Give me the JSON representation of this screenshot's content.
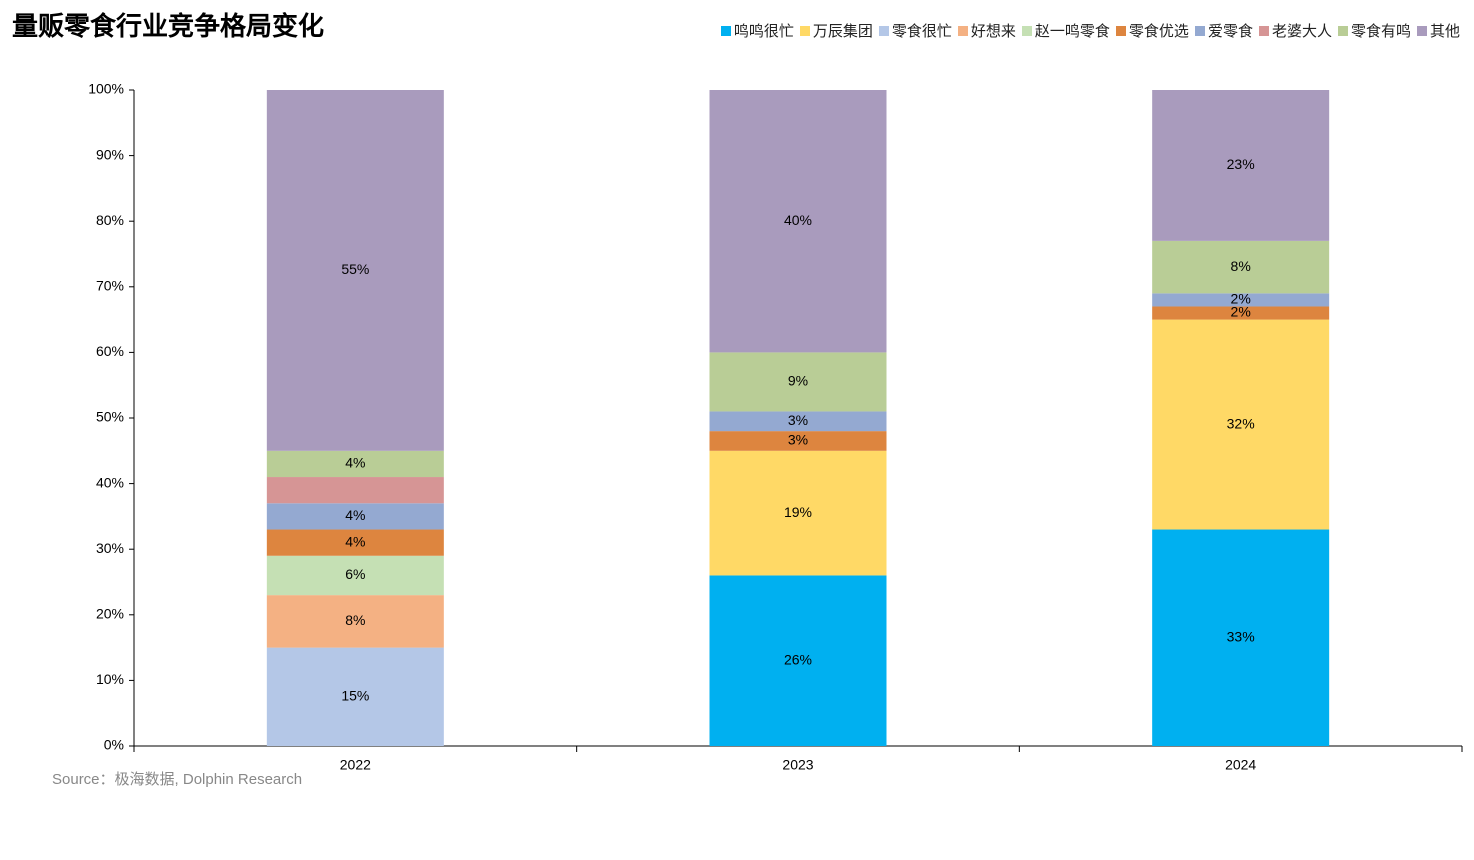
{
  "chart_data": {
    "type": "stacked_bar",
    "title": "量贩零食行业竞争格局变化",
    "source": "Source：极海数据, Dolphin Research",
    "categories": [
      "2022",
      "2023",
      "2024"
    ],
    "ylim": [
      0,
      100
    ],
    "yticks": [
      {
        "value": 0,
        "label": "0%"
      },
      {
        "value": 10,
        "label": "10%"
      },
      {
        "value": 20,
        "label": "20%"
      },
      {
        "value": 30,
        "label": "30%"
      },
      {
        "value": 40,
        "label": "40%"
      },
      {
        "value": 50,
        "label": "50%"
      },
      {
        "value": 60,
        "label": "60%"
      },
      {
        "value": 70,
        "label": "70%"
      },
      {
        "value": 80,
        "label": "80%"
      },
      {
        "value": 90,
        "label": "90%"
      },
      {
        "value": 100,
        "label": "100%"
      }
    ],
    "series": [
      {
        "name": "鸣鸣很忙",
        "color": "#00b0f0",
        "values": [
          null,
          26,
          33
        ],
        "value_labels": [
          null,
          "26%",
          "33%"
        ]
      },
      {
        "name": "万辰集团",
        "color": "#ffd966",
        "values": [
          null,
          19,
          32
        ],
        "value_labels": [
          null,
          "19%",
          "32%"
        ]
      },
      {
        "name": "零食很忙",
        "color": "#b4c7e7",
        "values": [
          15,
          null,
          null
        ],
        "value_labels": [
          "15%",
          null,
          null
        ]
      },
      {
        "name": "好想来",
        "color": "#f4b183",
        "values": [
          8,
          null,
          null
        ],
        "value_labels": [
          "8%",
          null,
          null
        ]
      },
      {
        "name": "赵一鸣零食",
        "color": "#c5e0b4",
        "values": [
          6,
          null,
          null
        ],
        "value_labels": [
          "6%",
          null,
          null
        ]
      },
      {
        "name": "零食优选",
        "color": "#dd853f",
        "values": [
          4,
          3,
          2
        ],
        "value_labels": [
          "4%",
          "3%",
          "2%"
        ]
      },
      {
        "name": "爱零食",
        "color": "#94a9d1",
        "values": [
          4,
          3,
          2
        ],
        "value_labels": [
          "4%",
          "3%",
          "2%"
        ]
      },
      {
        "name": "老婆大人",
        "color": "#d69595",
        "values": [
          4,
          null,
          null
        ],
        "value_labels": [
          null,
          null,
          null
        ]
      },
      {
        "name": "零食有鸣",
        "color": "#b9cd96",
        "values": [
          4,
          9,
          8
        ],
        "value_labels": [
          "4%",
          "9%",
          "8%"
        ]
      },
      {
        "name": "其他",
        "color": "#a99bbd",
        "values": [
          55,
          40,
          23
        ],
        "value_labels": [
          "55%",
          "40%",
          "23%"
        ]
      }
    ]
  }
}
